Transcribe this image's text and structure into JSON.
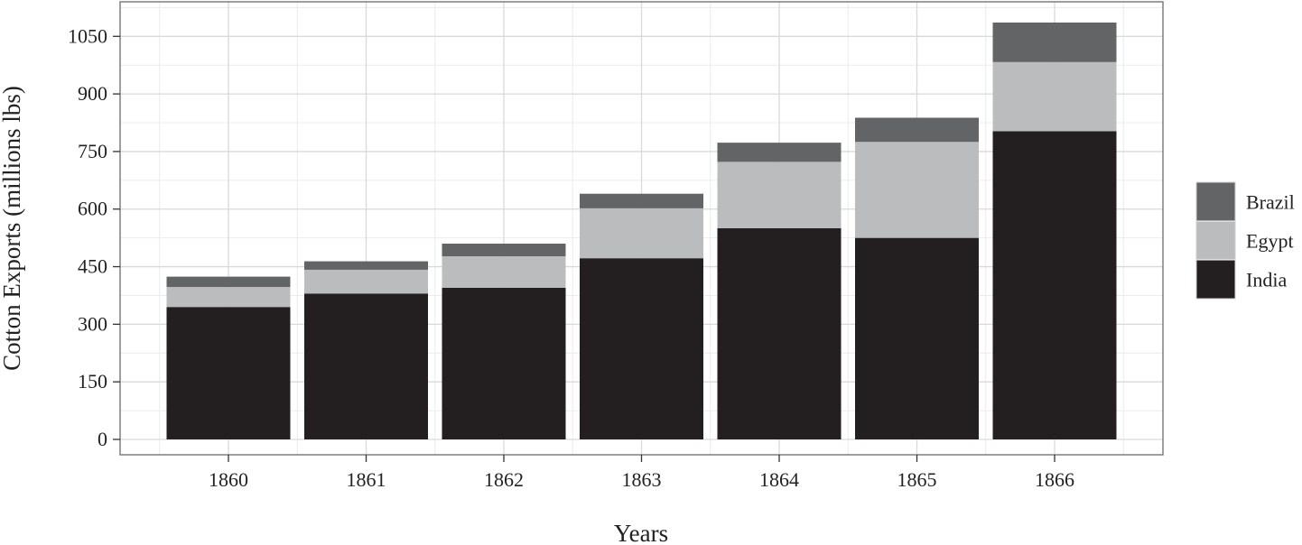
{
  "chart_data": {
    "type": "bar",
    "stacked": true,
    "title": "",
    "xlabel": "Years",
    "ylabel": "Cotton Exports (millions lbs)",
    "categories": [
      "1860",
      "1861",
      "1862",
      "1863",
      "1864",
      "1865",
      "1866"
    ],
    "series": [
      {
        "name": "India",
        "color": "#231f20",
        "values": [
          345,
          380,
          395,
          472,
          550,
          525,
          803
        ]
      },
      {
        "name": "Egypt",
        "color": "#bbbcbe",
        "values": [
          52,
          62,
          82,
          130,
          173,
          250,
          180
        ]
      },
      {
        "name": "Brazil",
        "color": "#636466",
        "values": [
          27,
          22,
          33,
          38,
          50,
          63,
          103
        ]
      }
    ],
    "ylim": [
      -40,
      1140
    ],
    "yticks": [
      0,
      150,
      300,
      450,
      600,
      750,
      900,
      1050
    ],
    "ytick_labels": [
      "0",
      "150",
      "300",
      "450",
      "600",
      "750",
      "900",
      "1050"
    ],
    "legend": {
      "position": "right",
      "order": [
        "Brazil",
        "Egypt",
        "India"
      ]
    },
    "grid": true,
    "background": "#ffffff",
    "grid_major_color": "#d9d9d9",
    "grid_minor_color": "#ececec",
    "panel_border_color": "#7f7f7f"
  }
}
